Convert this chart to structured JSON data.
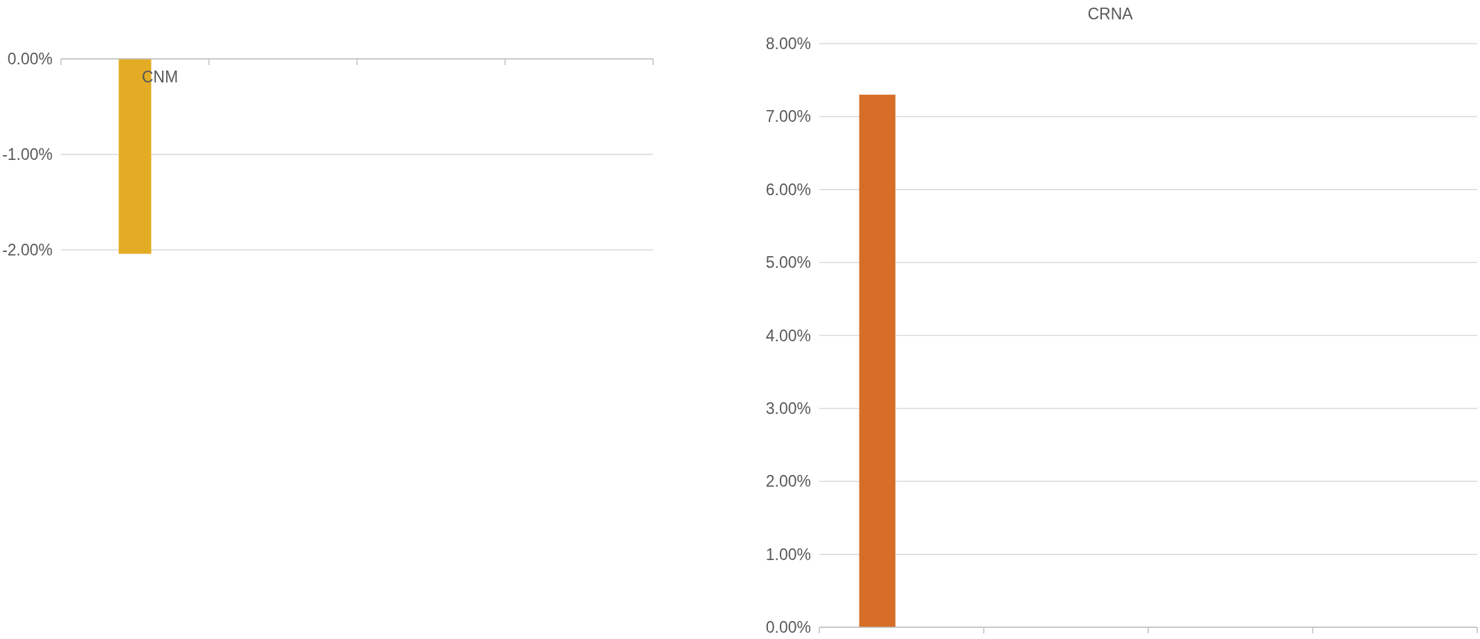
{
  "chart_data": [
    {
      "type": "bar",
      "categories": [
        "CNM",
        null,
        null,
        null
      ],
      "values": [
        -2.04,
        null,
        null,
        null
      ],
      "color": "#e3ac24",
      "ylim": [
        -2.05,
        0
      ],
      "yticks": [
        {
          "value": 0,
          "label": "0.00%"
        },
        {
          "value": -1,
          "label": "-1.00%"
        },
        {
          "value": -2,
          "label": "-2.00%"
        }
      ],
      "grid": "y"
    },
    {
      "type": "bar",
      "title": "CRNA",
      "categories": [
        null,
        null,
        null,
        null
      ],
      "values": [
        7.3,
        null,
        null,
        null
      ],
      "color": "#d66e28",
      "ylim": [
        0,
        8
      ],
      "yticks": [
        {
          "value": 0,
          "label": "0.00%"
        },
        {
          "value": 1,
          "label": "1.00%"
        },
        {
          "value": 2,
          "label": "2.00%"
        },
        {
          "value": 3,
          "label": "3.00%"
        },
        {
          "value": 4,
          "label": "4.00%"
        },
        {
          "value": 5,
          "label": "5.00%"
        },
        {
          "value": 6,
          "label": "6.00%"
        },
        {
          "value": 7,
          "label": "7.00%"
        },
        {
          "value": 8,
          "label": "8.00%"
        }
      ],
      "grid": "y"
    }
  ]
}
